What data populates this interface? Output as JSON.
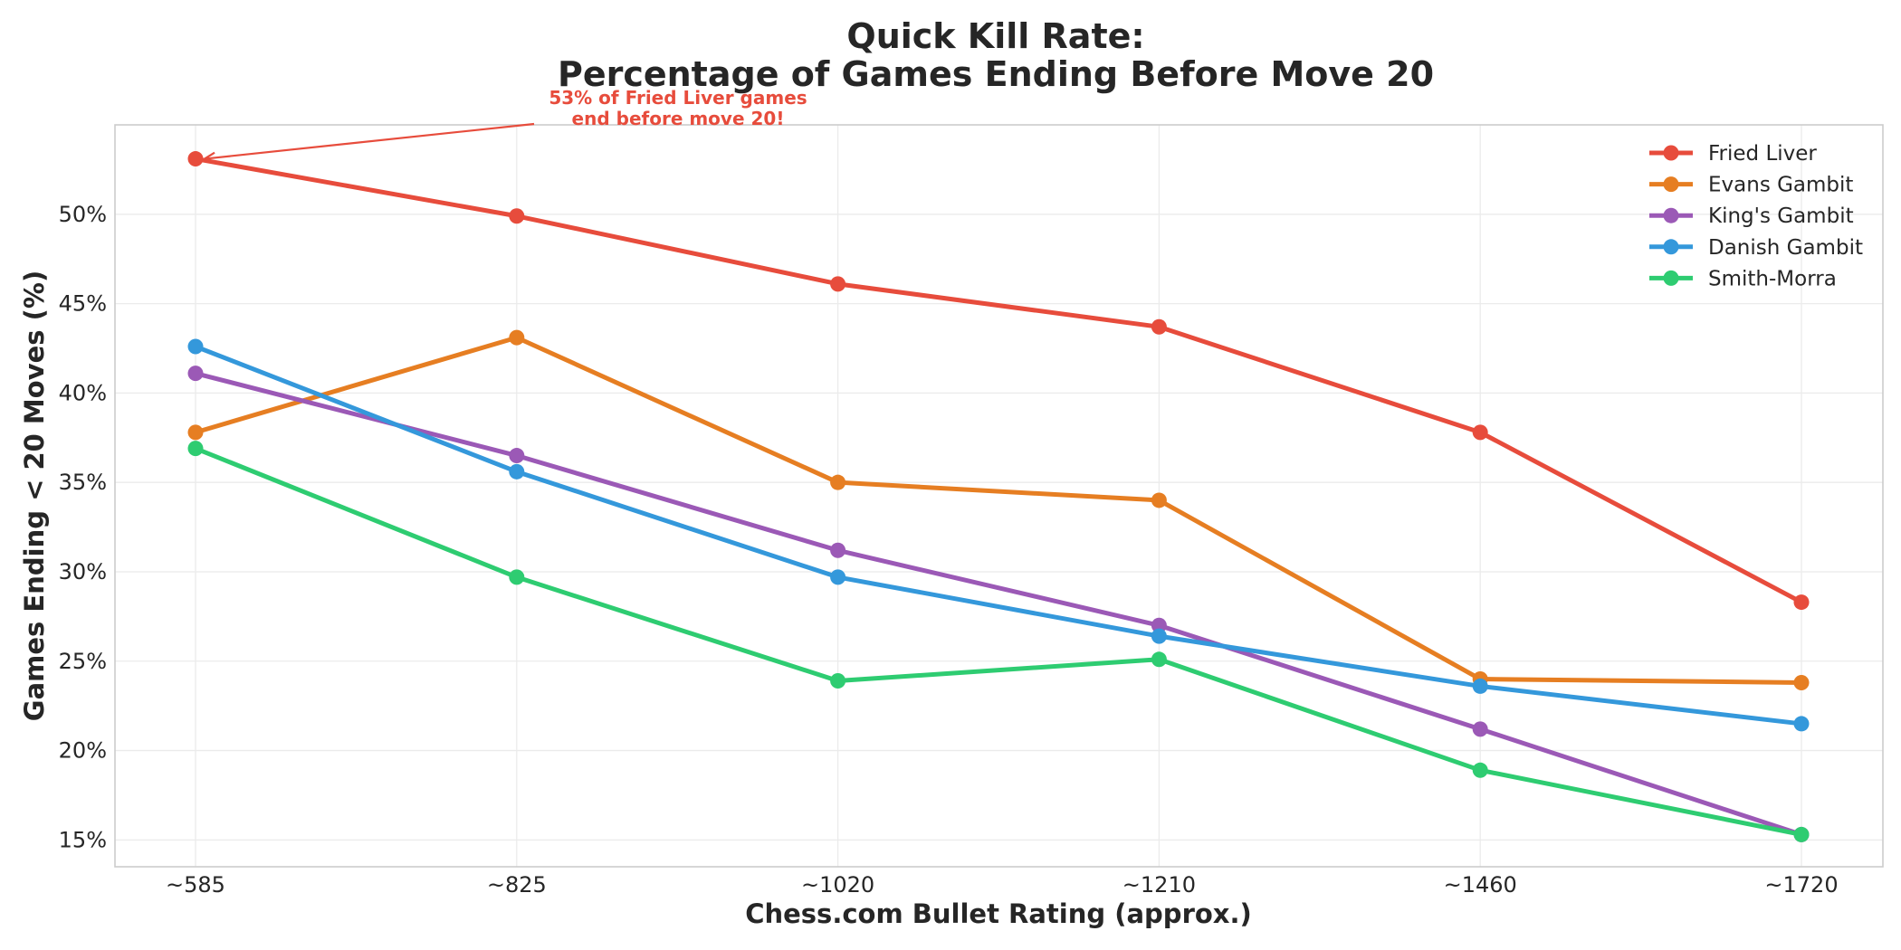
{
  "chart_data": {
    "type": "line",
    "title_line1": "Quick Kill Rate:",
    "title_line2": "Percentage of Games Ending Before Move 20",
    "xlabel": "Chess.com Bullet Rating (approx.)",
    "ylabel": "Games Ending < 20 Moves (%)",
    "categories": [
      "~585",
      "~825",
      "~1020",
      "~1210",
      "~1460",
      "~1720"
    ],
    "ylim": [
      13.5,
      55
    ],
    "yticks": [
      15,
      20,
      25,
      30,
      35,
      40,
      45,
      50
    ],
    "ytick_labels": [
      "15%",
      "20%",
      "25%",
      "30%",
      "35%",
      "40%",
      "45%",
      "50%"
    ],
    "grid": true,
    "legend_position": "top-right",
    "series": [
      {
        "name": "Fried Liver",
        "color": "#e74c3c",
        "values": [
          53.1,
          49.9,
          46.1,
          43.7,
          37.8,
          28.3
        ]
      },
      {
        "name": "Evans Gambit",
        "color": "#e67e22",
        "values": [
          37.8,
          43.1,
          35.0,
          34.0,
          24.0,
          23.8
        ]
      },
      {
        "name": "King's Gambit",
        "color": "#9b59b6",
        "values": [
          41.1,
          36.5,
          31.2,
          27.0,
          21.2,
          15.3
        ]
      },
      {
        "name": "Danish Gambit",
        "color": "#3498db",
        "values": [
          42.6,
          35.6,
          29.7,
          26.4,
          23.6,
          21.5
        ]
      },
      {
        "name": "Smith-Morra",
        "color": "#2ecc71",
        "values": [
          36.9,
          29.7,
          23.9,
          25.1,
          18.9,
          15.3
        ]
      }
    ],
    "annotation": {
      "line1": "53% of Fried Liver games",
      "line2": "end before move 20!",
      "series": "Fried Liver",
      "category_index": 0,
      "color": "#e74c3c"
    }
  }
}
